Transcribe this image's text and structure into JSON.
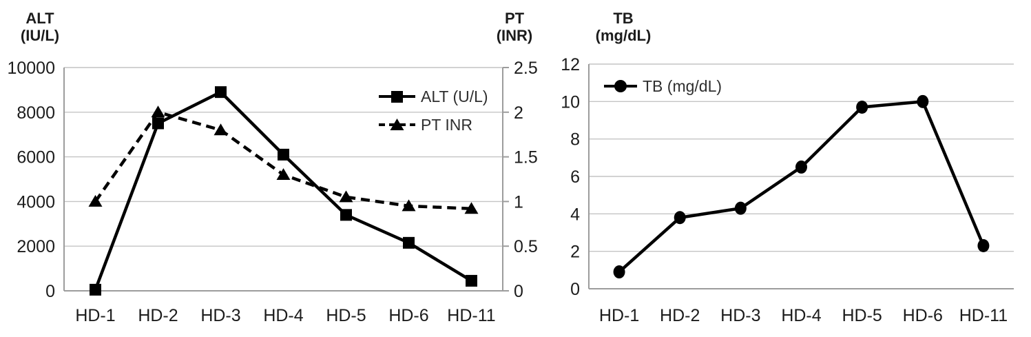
{
  "figure": {
    "background": "#ffffff"
  },
  "style": {
    "series_color": "#000000",
    "grid_color": "#c4c4c4",
    "axis_color": "#9c9c9c",
    "text_color": "#1c1c1c",
    "legend_text_color": "#2f2f2f"
  },
  "chart_data": [
    {
      "id": "alt-pt-chart",
      "type": "line",
      "title": "",
      "xlabel": "",
      "categories": [
        "HD-1",
        "HD-2",
        "HD-3",
        "HD-4",
        "HD-5",
        "HD-6",
        "HD-11"
      ],
      "series": [
        {
          "name": "ALT (U/L)",
          "axis": "left",
          "line_style": "solid",
          "marker": "square",
          "values": [
            50,
            7500,
            8900,
            6100,
            3400,
            2150,
            450
          ]
        },
        {
          "name": "PT INR",
          "axis": "right",
          "line_style": "dashed",
          "marker": "triangle",
          "values": [
            1.0,
            2.0,
            1.8,
            1.3,
            1.05,
            0.95,
            0.92
          ]
        }
      ],
      "axes": {
        "left": {
          "title": [
            "ALT",
            "(IU/L)"
          ],
          "min": 0,
          "max": 10000,
          "step": 2000,
          "tick_labels": [
            "0",
            "2000",
            "4000",
            "6000",
            "8000",
            "10000"
          ]
        },
        "right": {
          "title": [
            "PT",
            "(INR)"
          ],
          "min": 0,
          "max": 2.5,
          "step": 0.5,
          "tick_labels": [
            "0",
            "0.5",
            "1",
            "1.5",
            "2",
            "2.5"
          ]
        }
      },
      "grid": true,
      "legend": {
        "position": "center-right",
        "entries": [
          "ALT (U/L)",
          "PT INR"
        ]
      }
    },
    {
      "id": "tb-chart",
      "type": "line",
      "title": "",
      "xlabel": "",
      "categories": [
        "HD-1",
        "HD-2",
        "HD-3",
        "HD-4",
        "HD-5",
        "HD-6",
        "HD-11"
      ],
      "series": [
        {
          "name": "TB (mg/dL)",
          "axis": "left",
          "line_style": "solid",
          "marker": "circle",
          "values": [
            0.9,
            3.8,
            4.3,
            6.5,
            9.7,
            10.0,
            2.3
          ]
        }
      ],
      "axes": {
        "left": {
          "title": [
            "TB",
            "(mg/dL)"
          ],
          "min": 0,
          "max": 12,
          "step": 2,
          "tick_labels": [
            "0",
            "2",
            "4",
            "6",
            "8",
            "10",
            "12"
          ]
        }
      },
      "grid": true,
      "legend": {
        "position": "top-left",
        "entries": [
          "TB (mg/dL)"
        ]
      }
    }
  ]
}
